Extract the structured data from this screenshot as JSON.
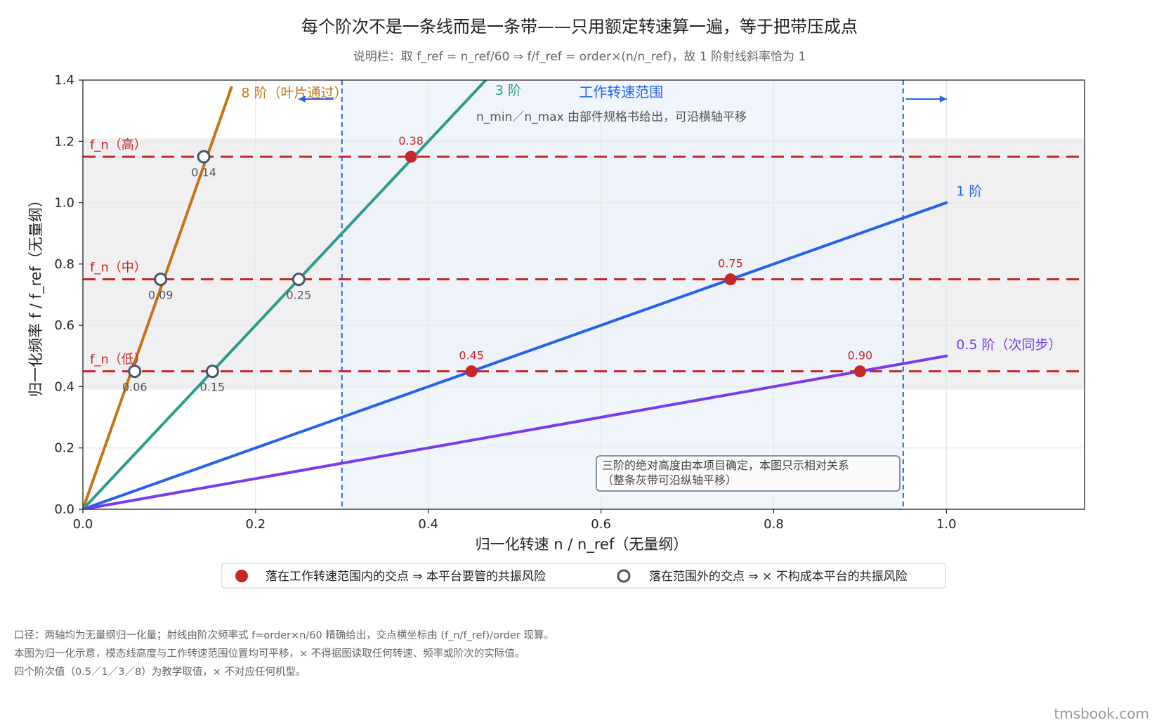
{
  "header": {
    "title": "每个阶次不是一条线而是一条带——只用额定转速算一遍，等于把带压成点",
    "subtitle": "说明栏：取 f_ref = n_ref/60 ⇒ f/f_ref = order×(n/n_ref)，故 1 阶射线斜率恰为 1"
  },
  "chart_data": {
    "type": "line",
    "xlabel": "归一化转速 n / n_ref（无量纲）",
    "ylabel": "归一化频率 f / f_ref（无量纲）",
    "xlim": [
      0,
      1.16
    ],
    "ylim": [
      0,
      1.4
    ],
    "x_ticks": [
      "0.0",
      "0.2",
      "0.4",
      "0.6",
      "0.8",
      "1.0"
    ],
    "y_ticks": [
      "0.0",
      "0.2",
      "0.4",
      "0.6",
      "0.8",
      "1.0",
      "1.2",
      "1.4"
    ],
    "grid": true,
    "series": [
      {
        "name": "8 阶（叶片通过）",
        "order": 8,
        "color": "#c47414",
        "x_end": 0.172
      },
      {
        "name": "3 阶",
        "order": 3,
        "color": "#2a9d8f",
        "x_end": 0.466
      },
      {
        "name": "1 阶",
        "order": 1,
        "color": "#2563eb",
        "x_end": 1.0
      },
      {
        "name": "0.5 阶（次同步）",
        "order": 0.5,
        "color": "#7c3aed",
        "x_end": 1.0
      }
    ],
    "modal_lines": [
      {
        "label": "f_n（高）",
        "y": 1.15
      },
      {
        "label": "f_n（中）",
        "y": 0.75
      },
      {
        "label": "f_n（低）",
        "y": 0.45
      }
    ],
    "modal_band": [
      0.39,
      1.21
    ],
    "speed_range": {
      "label": "工作转速范围",
      "x_min": 0.3,
      "x_max": 0.95,
      "note": "n_min／n_max 由部件规格书给出，可沿横轴平移"
    },
    "intersections": [
      {
        "x": 0.06,
        "y": 0.45,
        "label": "0.06",
        "inside": false
      },
      {
        "x": 0.09,
        "y": 0.75,
        "label": "0.09",
        "inside": false
      },
      {
        "x": 0.14,
        "y": 1.15,
        "label": "0.14",
        "inside": false
      },
      {
        "x": 0.15,
        "y": 0.45,
        "label": "0.15",
        "inside": false
      },
      {
        "x": 0.25,
        "y": 0.75,
        "label": "0.25",
        "inside": false
      },
      {
        "x": 0.38,
        "y": 1.15,
        "label": "0.38",
        "inside": true
      },
      {
        "x": 0.45,
        "y": 0.45,
        "label": "0.45",
        "inside": true
      },
      {
        "x": 0.75,
        "y": 0.75,
        "label": "0.75",
        "inside": true
      },
      {
        "x": 0.9,
        "y": 0.45,
        "label": "0.90",
        "inside": true
      }
    ],
    "annotation_box": [
      "三阶的绝对高度由本项目确定，本图只示相对关系",
      "（整条灰带可沿纵轴平移）"
    ],
    "legend": {
      "placement": "bottom",
      "inside_label": "落在工作转速范围内的交点 ⇒ 本平台要管的共振风险",
      "outside_label": "落在范围外的交点 ⇒ × 不构成本平台的共振风险"
    }
  },
  "colors": {
    "modal": "#c62828",
    "inside_point": "#c62828",
    "outside_edge": "#475569",
    "band": "#f0f0f2",
    "speed_fill": "#edf3fc",
    "speed_edge": "#2563eb"
  },
  "footnotes": [
    "口径：两轴均为无量纲归一化量；射线由阶次频率式 f=order×n/60 精确给出，交点横坐标由 (f_n/f_ref)/order 现算。",
    "本图为归一化示意，模态线高度与工作转速范围位置均可平移，× 不得据图读取任何转速、频率或阶次的实际值。",
    "四个阶次值（0.5／1／3／8）为教学取值，× 不对应任何机型。"
  ],
  "watermark": "tmsbook.com"
}
